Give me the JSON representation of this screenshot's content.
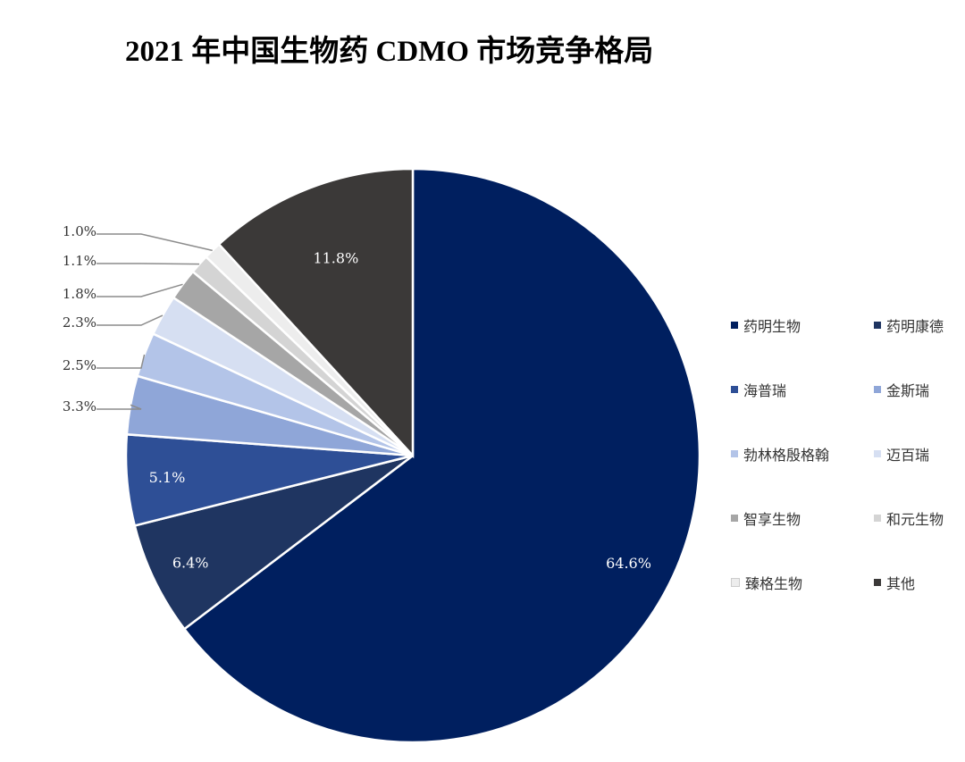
{
  "chart_data": {
    "type": "pie",
    "title": "2021 年中国生物药 CDMO 市场竞争格局",
    "categories": [
      "药明生物",
      "药明康德",
      "海普瑞",
      "金斯瑞",
      "勃林格殷格翰",
      "迈百瑞",
      "智享生物",
      "和元生物",
      "臻格生物",
      "其他"
    ],
    "values": [
      64.6,
      6.4,
      5.1,
      3.3,
      2.5,
      2.3,
      1.8,
      1.1,
      1.0,
      11.8
    ],
    "labels": [
      "64.6%",
      "6.4%",
      "5.1%",
      "3.3%",
      "2.5%",
      "2.3%",
      "1.8%",
      "1.1%",
      "1.0%",
      "11.8%"
    ],
    "colors": [
      "#001F5F",
      "#1F3561",
      "#2E4F96",
      "#8FA6D8",
      "#B3C4E8",
      "#D6DFF2",
      "#A6A6A6",
      "#D4D4D4",
      "#EDEDED",
      "#3B3938"
    ],
    "legend_position": "right"
  }
}
